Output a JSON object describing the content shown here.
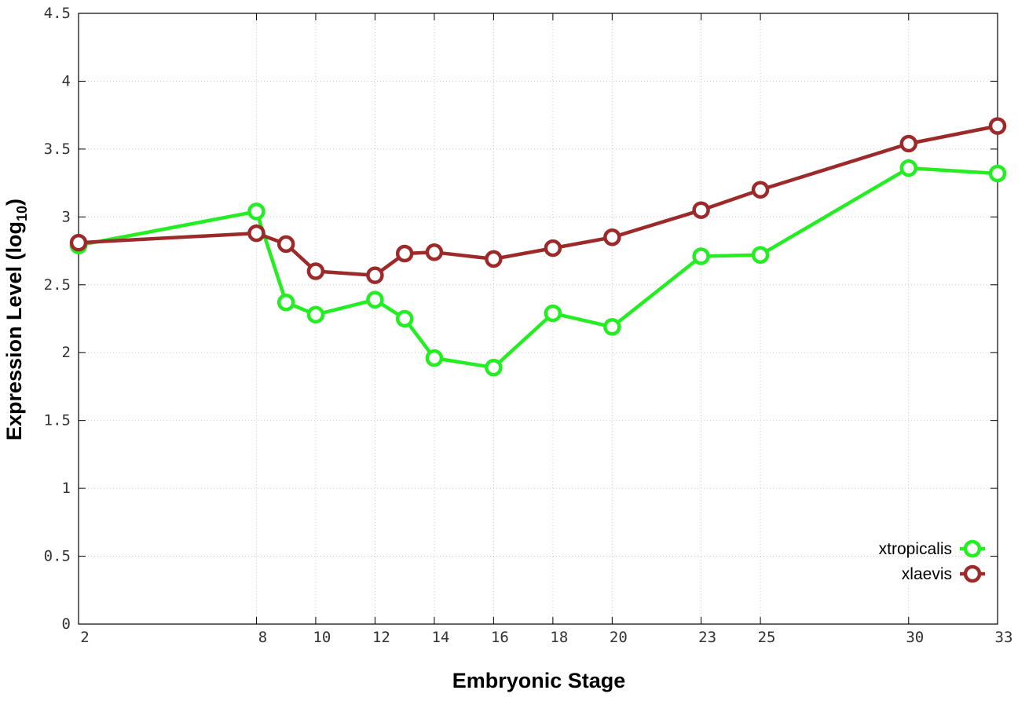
{
  "chart_data": {
    "type": "line",
    "xlabel": "Embryonic Stage",
    "ylabel_main": "Expression Level (log",
    "ylabel_sub": "10",
    "ylabel_close": ")",
    "x_ticks": [
      2,
      8,
      10,
      12,
      14,
      16,
      18,
      20,
      23,
      25,
      30,
      33
    ],
    "x_tick_labels": [
      "2",
      "8",
      "10",
      "12",
      "14",
      "16",
      "18",
      "20",
      "23",
      "25",
      "30",
      "33"
    ],
    "y_ticks": [
      0,
      0.5,
      1,
      1.5,
      2,
      2.5,
      3,
      3.5,
      4,
      4.5
    ],
    "y_tick_labels": [
      "0",
      "0.5",
      "1",
      "1.5",
      "2",
      "2.5",
      "3",
      "3.5",
      "4",
      "4.5"
    ],
    "ylim": [
      0,
      4.5
    ],
    "grid": true,
    "legend_position": "bottom-right",
    "series": [
      {
        "name": "xtropicalis",
        "color": "#22ee22",
        "x": [
          2,
          8,
          9,
          10,
          12,
          13,
          14,
          16,
          18,
          20,
          23,
          25,
          30,
          33
        ],
        "values": [
          2.79,
          3.04,
          2.37,
          2.28,
          2.39,
          2.25,
          1.96,
          1.89,
          2.29,
          2.19,
          2.71,
          2.72,
          3.36,
          3.32
        ]
      },
      {
        "name": "xlaevis",
        "color": "#9c2a2a",
        "x": [
          2,
          8,
          9,
          10,
          12,
          13,
          14,
          16,
          18,
          20,
          23,
          25,
          30,
          33
        ],
        "values": [
          2.81,
          2.88,
          2.8,
          2.6,
          2.57,
          2.73,
          2.74,
          2.69,
          2.77,
          2.85,
          3.05,
          3.2,
          3.54,
          3.67
        ]
      }
    ]
  }
}
